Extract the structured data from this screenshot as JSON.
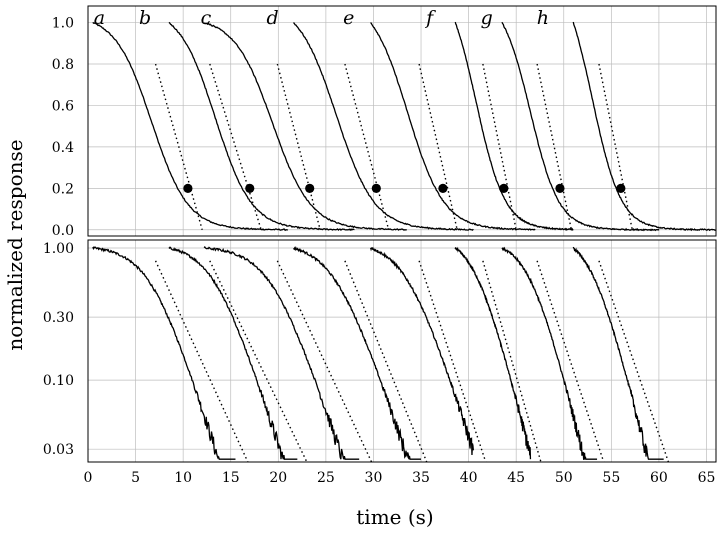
{
  "chart_data": {
    "type": "line",
    "panels": [
      {
        "id": "top",
        "scale": "linear",
        "xlim": [
          0,
          66
        ],
        "ylim": [
          -0.03,
          1.08
        ],
        "yticks": [
          0.0,
          0.2,
          0.4,
          0.6,
          0.8,
          1.0
        ],
        "ytick_labels": [
          "0.0",
          "0.2",
          "0.4",
          "0.6",
          "0.8",
          "1.0"
        ],
        "grid": true
      },
      {
        "id": "bottom",
        "scale": "log",
        "xlim": [
          0,
          66
        ],
        "ylim": [
          0.024,
          1.15
        ],
        "yticks": [
          0.03,
          0.1,
          0.3,
          1.0
        ],
        "ytick_labels": [
          "0.03",
          "0.10",
          "0.30",
          "1.00"
        ],
        "grid": true
      }
    ],
    "xticks": [
      0,
      5,
      10,
      15,
      20,
      25,
      30,
      35,
      40,
      45,
      50,
      55,
      60,
      65
    ],
    "xtick_labels": [
      "0",
      "5",
      "10",
      "15",
      "20",
      "25",
      "30",
      "35",
      "40",
      "45",
      "50",
      "55",
      "60",
      "65"
    ],
    "xlabel": "time (s)",
    "ylabel": "normalized response",
    "series": [
      {
        "name": "a",
        "letter_x": 1.2,
        "start": 0.5,
        "half": 6.7,
        "tau": 1.9,
        "end_top": 21.0,
        "end_bot": 15.5,
        "dot": [
          10.5,
          0.2
        ],
        "fit_top": [
          [
            7.1,
            0.8
          ],
          [
            12.0,
            0.0
          ]
        ],
        "fit_bot": [
          [
            7.1,
            0.8
          ],
          [
            16.8,
            0.024
          ]
        ]
      },
      {
        "name": "b",
        "letter_x": 6.0,
        "start": 8.5,
        "half": 13.4,
        "tau": 1.9,
        "end_top": 28.0,
        "end_bot": 22.0,
        "dot": [
          17.0,
          0.2
        ],
        "fit_top": [
          [
            12.8,
            0.8
          ],
          [
            18.2,
            0.0
          ]
        ],
        "fit_bot": [
          [
            12.8,
            0.8
          ],
          [
            23.0,
            0.024
          ]
        ]
      },
      {
        "name": "c",
        "letter_x": 12.4,
        "start": 12.2,
        "half": 19.4,
        "tau": 2.0,
        "end_top": 33.5,
        "end_bot": 28.5,
        "dot": [
          23.3,
          0.2
        ],
        "fit_top": [
          [
            19.9,
            0.8
          ],
          [
            24.4,
            0.0
          ]
        ],
        "fit_bot": [
          [
            19.9,
            0.8
          ],
          [
            29.8,
            0.024
          ]
        ]
      },
      {
        "name": "d",
        "letter_x": 19.4,
        "start": 21.6,
        "half": 26.1,
        "tau": 2.0,
        "end_top": 40.5,
        "end_bot": 35.0,
        "dot": [
          30.3,
          0.2
        ],
        "fit_top": [
          [
            27.0,
            0.8
          ],
          [
            31.6,
            0.0
          ]
        ],
        "fit_bot": [
          [
            27.0,
            0.8
          ],
          [
            35.6,
            0.024
          ]
        ]
      },
      {
        "name": "e",
        "letter_x": 27.4,
        "start": 29.7,
        "half": 33.6,
        "tau": 1.9,
        "end_top": 47.0,
        "end_bot": 40.5,
        "dot": [
          37.3,
          0.2
        ],
        "fit_top": [
          [
            34.8,
            0.8
          ],
          [
            38.8,
            0.0
          ]
        ],
        "fit_bot": [
          [
            34.8,
            0.8
          ],
          [
            41.8,
            0.024
          ]
        ]
      },
      {
        "name": "f",
        "letter_x": 35.9,
        "start": 38.6,
        "half": 40.8,
        "tau": 1.5,
        "end_top": 51.0,
        "end_bot": 46.5,
        "dot": [
          43.7,
          0.2
        ],
        "fit_top": [
          [
            41.5,
            0.8
          ],
          [
            45.0,
            0.0
          ]
        ],
        "fit_bot": [
          [
            41.5,
            0.8
          ],
          [
            47.6,
            0.024
          ]
        ]
      },
      {
        "name": "g",
        "letter_x": 41.9,
        "start": 43.5,
        "half": 46.5,
        "tau": 1.5,
        "end_top": 60.0,
        "end_bot": 53.5,
        "dot": [
          49.6,
          0.2
        ],
        "fit_top": [
          [
            47.2,
            0.8
          ],
          [
            50.8,
            0.0
          ]
        ],
        "fit_bot": [
          [
            47.2,
            0.8
          ],
          [
            54.2,
            0.024
          ]
        ]
      },
      {
        "name": "h",
        "letter_x": 47.8,
        "start": 51.0,
        "half": 53.0,
        "tau": 1.5,
        "end_top": 66.0,
        "end_bot": 60.5,
        "dot": [
          56.0,
          0.2
        ],
        "fit_top": [
          [
            53.7,
            0.8
          ],
          [
            57.2,
            0.0
          ]
        ],
        "fit_bot": [
          [
            53.7,
            0.8
          ],
          [
            61.0,
            0.024
          ]
        ]
      }
    ]
  }
}
